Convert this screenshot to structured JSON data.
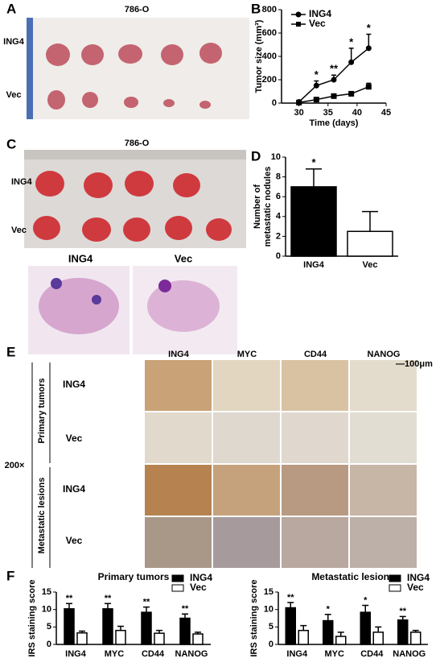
{
  "panels": {
    "A": {
      "letter": "A",
      "title": "786-O",
      "rows": [
        "ING4",
        "Vec"
      ]
    },
    "C": {
      "letter": "C",
      "title": "786-O",
      "rows": [
        "ING4",
        "Vec"
      ],
      "histology": [
        "ING4",
        "Vec"
      ]
    },
    "E": {
      "letter": "E",
      "columns": [
        "ING4",
        "MYC",
        "CD44",
        "NANOG"
      ],
      "scale": "—100μm",
      "magnification": "200×",
      "groups": [
        "Primary tumors",
        "Metastatic lesions"
      ],
      "rows": [
        "ING4",
        "Vec",
        "ING4",
        "Vec"
      ]
    },
    "F": {
      "letter": "F"
    },
    "B": {
      "letter": "B"
    },
    "D": {
      "letter": "D"
    }
  },
  "chart_data": [
    {
      "type": "line",
      "xlabel": "Time (days)",
      "ylabel": "Tumor size (mm³)",
      "x": [
        30,
        33,
        36,
        39,
        42
      ],
      "series": [
        {
          "name": "ING4",
          "color": "#000",
          "marker": "circle",
          "values": [
            10,
            150,
            200,
            350,
            470
          ],
          "errors": [
            10,
            40,
            40,
            120,
            120
          ]
        },
        {
          "name": "Vec",
          "color": "#000",
          "marker": "square",
          "values": [
            5,
            30,
            60,
            80,
            140
          ],
          "errors": [
            5,
            10,
            10,
            10,
            30
          ]
        }
      ],
      "xlim": [
        27,
        45
      ],
      "xticks": [
        30,
        35,
        40,
        45
      ],
      "ylim": [
        0,
        800
      ],
      "yticks": [
        0,
        200,
        400,
        600,
        800
      ],
      "legend": "top-left",
      "annotations": [
        {
          "text": "*",
          "x": 33
        },
        {
          "text": "**",
          "x": 36
        },
        {
          "text": "*",
          "x": 39
        },
        {
          "text": "*",
          "x": 42
        }
      ]
    },
    {
      "type": "bar",
      "ylabel": [
        "Number of",
        "metastatic nodules"
      ],
      "categories": [
        "ING4",
        "Vec"
      ],
      "values": [
        7,
        2.5
      ],
      "errors": [
        1.8,
        2
      ],
      "colors": [
        "#000",
        "#fff"
      ],
      "ylim": [
        0,
        10
      ],
      "yticks": [
        0,
        2,
        4,
        6,
        8,
        10
      ],
      "annotations": [
        "*",
        null
      ]
    },
    {
      "type": "grouped-bar",
      "title": "Primary tumors",
      "ylabel": "IRS staining score",
      "categories": [
        "ING4",
        "MYC",
        "CD44",
        "NANOG"
      ],
      "series": [
        {
          "name": "ING4",
          "color": "#000",
          "values": [
            10.2,
            10.2,
            9.2,
            7.5
          ],
          "errors": [
            1.5,
            1.5,
            1.5,
            1.2
          ]
        },
        {
          "name": "Vec",
          "color": "#fff",
          "values": [
            3.3,
            4,
            3.2,
            3
          ],
          "errors": [
            0.5,
            1.2,
            0.8,
            0.5
          ]
        }
      ],
      "ylim": [
        0,
        15
      ],
      "yticks": [
        0,
        5,
        10,
        15
      ],
      "legend": "top-right",
      "annotations": [
        "**",
        "**",
        "**",
        "**"
      ]
    },
    {
      "type": "grouped-bar",
      "title": "Metastatic lesions",
      "ylabel": "IRS staining score",
      "categories": [
        "ING4",
        "MYC",
        "CD44",
        "NANOG"
      ],
      "series": [
        {
          "name": "ING4",
          "color": "#000",
          "values": [
            10.5,
            6.8,
            9.2,
            7
          ],
          "errors": [
            1.5,
            1.8,
            2,
            1
          ]
        },
        {
          "name": "Vec",
          "color": "#fff",
          "values": [
            4,
            2.3,
            3.5,
            3.5
          ],
          "errors": [
            1.4,
            1.2,
            1.5,
            0.5
          ]
        }
      ],
      "ylim": [
        0,
        15
      ],
      "yticks": [
        0,
        5,
        10,
        15
      ],
      "legend": "top-right",
      "annotations": [
        "**",
        "*",
        "*",
        "**"
      ]
    }
  ]
}
